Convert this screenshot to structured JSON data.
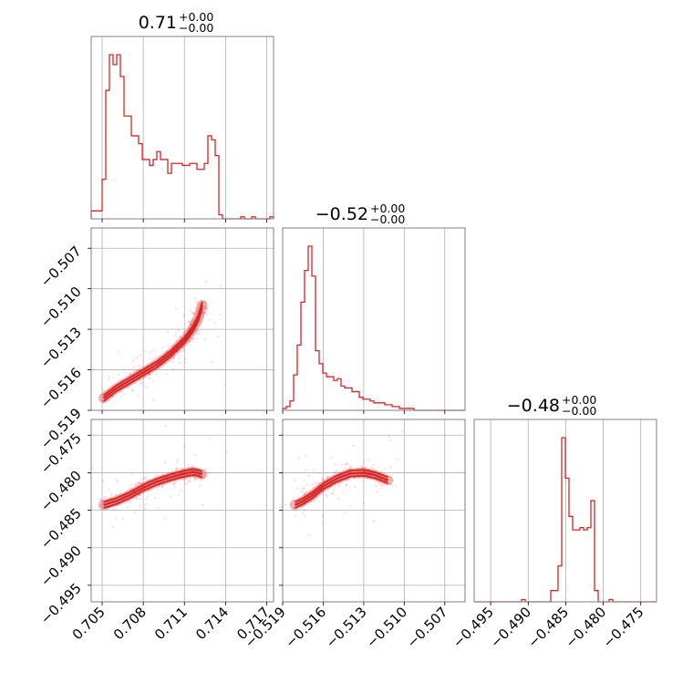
{
  "chart_data": {
    "type": "corner",
    "color": "#d62728",
    "grid": true,
    "parameters": [
      {
        "id": "p0",
        "title": "0.71",
        "err_plus": "+0.00",
        "err_minus": "−0.00",
        "range": [
          0.7042,
          0.7175
        ],
        "ticks": [
          0.705,
          0.708,
          0.711,
          0.714,
          0.717
        ],
        "tick_labels": [
          "0.705",
          "0.708",
          "0.711",
          "0.714",
          "0.717"
        ]
      },
      {
        "id": "p1",
        "title": "−0.52",
        "err_plus": "+0.00",
        "err_minus": "−0.00",
        "range": [
          -0.519,
          -0.5055
        ],
        "ticks": [
          -0.519,
          -0.516,
          -0.513,
          -0.51,
          -0.507
        ],
        "tick_labels": [
          "−0.519",
          "−0.516",
          "−0.513",
          "−0.510",
          "−0.507"
        ]
      },
      {
        "id": "p2",
        "title": "−0.48",
        "err_plus": "+0.00",
        "err_minus": "−0.00",
        "range": [
          -0.4972,
          -0.4729
        ],
        "ticks": [
          -0.495,
          -0.49,
          -0.485,
          -0.48,
          -0.475
        ],
        "tick_labels": [
          "−0.495",
          "−0.490",
          "−0.485",
          "−0.480",
          "−0.475"
        ]
      }
    ],
    "histograms": [
      {
        "param": 0,
        "edges_start": 0.7042,
        "bin_width": 0.000266,
        "counts": [
          4,
          4,
          4,
          20,
          65,
          83,
          78,
          83,
          72,
          52,
          52,
          42,
          42,
          38,
          30,
          30,
          27,
          30,
          34,
          30,
          30,
          23,
          28,
          28,
          28,
          27,
          27,
          28,
          28,
          25,
          25,
          28,
          42,
          40,
          32,
          2,
          0,
          0,
          0,
          0,
          0,
          1,
          0,
          0,
          1,
          0,
          0,
          0,
          0,
          1
        ]
      },
      {
        "param": 1,
        "edges_start": -0.519,
        "bin_width": 0.00027,
        "counts": [
          1,
          2,
          5,
          19,
          35,
          58,
          75,
          88,
          72,
          32,
          25,
          20,
          18,
          18,
          16,
          17,
          13,
          12,
          12,
          10,
          10,
          7,
          6,
          6,
          5,
          4,
          4,
          4,
          3,
          3,
          2,
          2,
          1,
          1,
          1,
          1,
          0,
          0,
          0,
          0,
          0,
          0,
          0,
          0,
          0,
          0,
          0,
          0,
          0,
          0
        ]
      },
      {
        "param": 2,
        "edges_start": -0.4972,
        "bin_width": 0.000486,
        "counts": [
          0,
          0,
          0,
          0,
          0,
          0,
          0,
          0,
          0,
          0,
          0,
          0,
          0,
          1,
          0,
          0,
          0,
          0,
          0,
          0,
          0,
          5,
          5,
          16,
          73,
          55,
          38,
          32,
          32,
          33,
          32,
          33,
          45,
          5,
          0,
          0,
          0,
          1,
          0,
          0,
          0,
          0,
          0,
          0,
          0,
          0,
          0,
          0,
          0,
          0
        ]
      }
    ],
    "ridge_curves": [
      {
        "x_param": 0,
        "y_param": 1,
        "points": [
          [
            0.7051,
            -0.5181
          ],
          [
            0.706,
            -0.5174
          ],
          [
            0.707,
            -0.5168
          ],
          [
            0.708,
            -0.5162
          ],
          [
            0.709,
            -0.5156
          ],
          [
            0.71,
            -0.5148
          ],
          [
            0.711,
            -0.5138
          ],
          [
            0.7116,
            -0.513
          ],
          [
            0.712,
            -0.5122
          ],
          [
            0.7123,
            -0.5112
          ]
        ]
      },
      {
        "x_param": 0,
        "y_param": 2,
        "points": [
          [
            0.7051,
            -0.4843
          ],
          [
            0.706,
            -0.4838
          ],
          [
            0.707,
            -0.483
          ],
          [
            0.708,
            -0.482
          ],
          [
            0.709,
            -0.4812
          ],
          [
            0.71,
            -0.4806
          ],
          [
            0.711,
            -0.4801
          ],
          [
            0.7117,
            -0.4799
          ],
          [
            0.7123,
            -0.4802
          ]
        ]
      },
      {
        "x_param": 1,
        "y_param": 2,
        "points": [
          [
            -0.5181,
            -0.4843
          ],
          [
            -0.5175,
            -0.4838
          ],
          [
            -0.5168,
            -0.483
          ],
          [
            -0.516,
            -0.4818
          ],
          [
            -0.515,
            -0.4808
          ],
          [
            -0.514,
            -0.4801
          ],
          [
            -0.513,
            -0.48
          ],
          [
            -0.5122,
            -0.4803
          ],
          [
            -0.5112,
            -0.481
          ]
        ]
      }
    ]
  }
}
